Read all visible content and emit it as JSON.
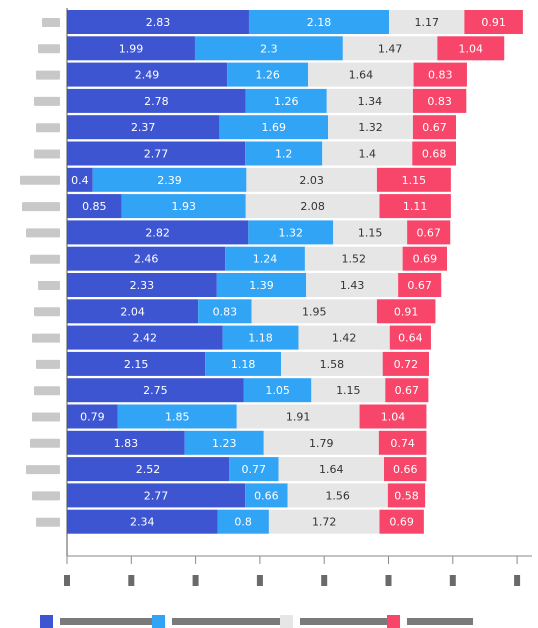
{
  "chart_data": {
    "type": "bar",
    "orientation": "horizontal",
    "stacked": true,
    "xlim": [
      0,
      7
    ],
    "grid": false,
    "legend": "bottom",
    "categories": [
      "",
      "",
      "",
      "",
      "",
      "",
      "",
      "",
      "",
      "",
      "",
      "",
      "",
      "",
      "",
      "",
      "",
      "",
      "",
      ""
    ],
    "x_ticks": [
      "",
      "",
      "",
      "",
      "",
      "",
      "",
      ""
    ],
    "series": [
      {
        "name": "",
        "color": "#3d55d1",
        "label_color": "#ffffff",
        "values": [
          2.83,
          1.99,
          2.49,
          2.78,
          2.37,
          2.77,
          0.4,
          0.85,
          2.82,
          2.46,
          2.33,
          2.04,
          2.42,
          2.15,
          2.75,
          0.79,
          1.83,
          2.52,
          2.77,
          2.34
        ]
      },
      {
        "name": "",
        "color": "#32a4f5",
        "label_color": "#ffffff",
        "values": [
          2.18,
          2.3,
          1.26,
          1.26,
          1.69,
          1.2,
          2.39,
          1.93,
          1.32,
          1.24,
          1.39,
          0.83,
          1.18,
          1.18,
          1.05,
          1.85,
          1.23,
          0.77,
          0.66,
          0.8
        ]
      },
      {
        "name": "",
        "color": "#e6e6e6",
        "label_color": "#333333",
        "values": [
          1.17,
          1.47,
          1.64,
          1.34,
          1.32,
          1.4,
          2.03,
          2.08,
          1.15,
          1.52,
          1.43,
          1.95,
          1.42,
          1.58,
          1.15,
          1.91,
          1.79,
          1.64,
          1.56,
          1.72
        ]
      },
      {
        "name": "",
        "color": "#f8456a",
        "label_color": "#ffffff",
        "values": [
          0.91,
          1.04,
          0.83,
          0.83,
          0.67,
          0.68,
          1.15,
          1.11,
          0.67,
          0.69,
          0.67,
          0.91,
          0.64,
          0.72,
          0.67,
          1.04,
          0.74,
          0.66,
          0.58,
          0.69
        ]
      }
    ]
  }
}
